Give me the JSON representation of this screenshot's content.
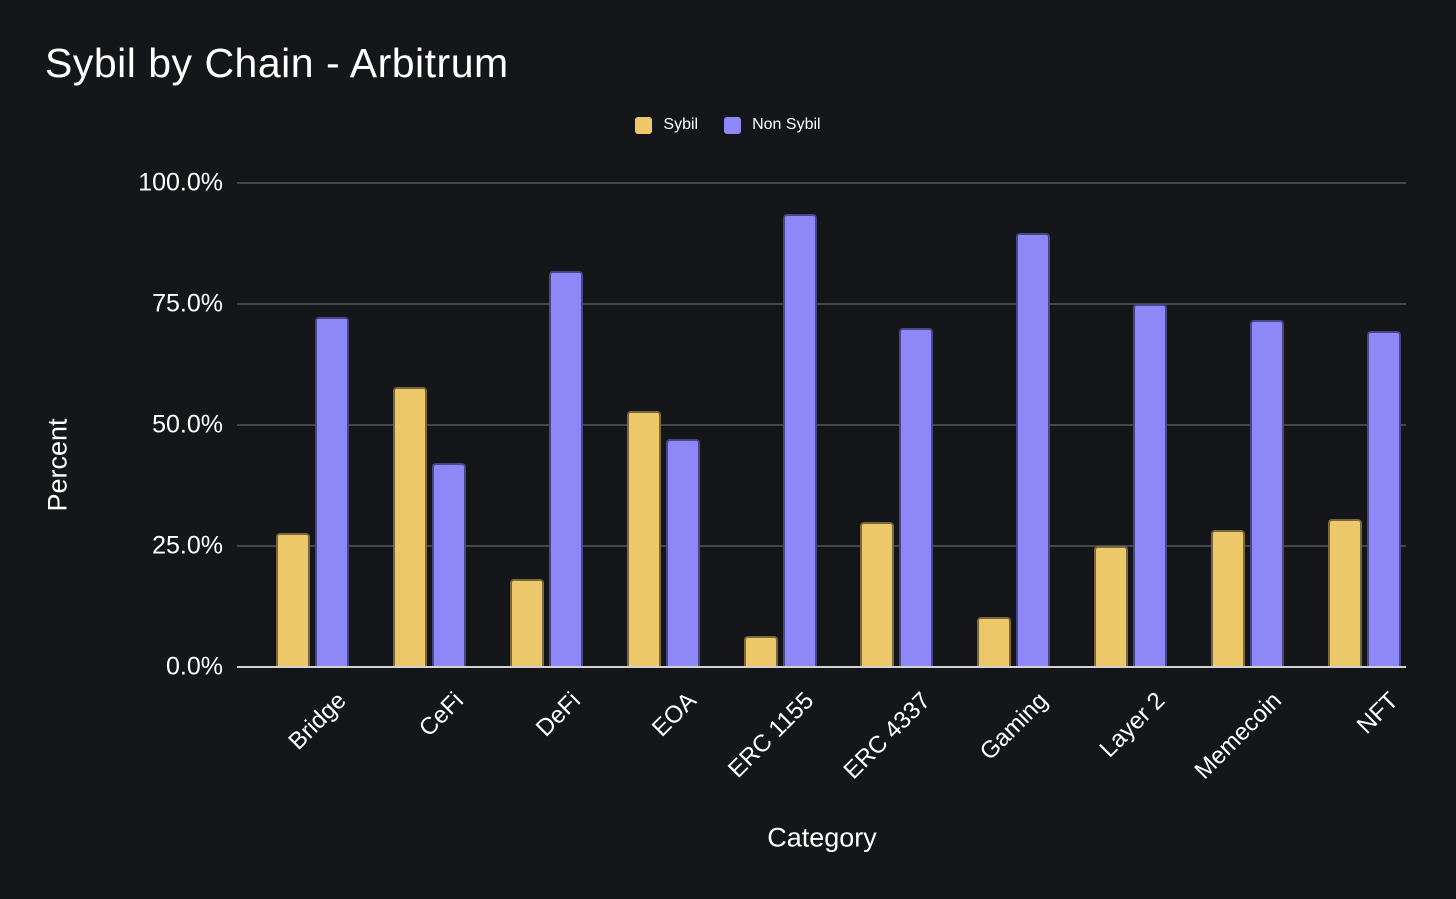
{
  "title": "Sybil by Chain - Arbitrum",
  "colors": {
    "background": "#15161a",
    "sybil": "#ecc869",
    "non_sybil": "#8d87f8",
    "gridline": "#46474c",
    "zero_axis": "#d2d2d2",
    "text": "#ffffff"
  },
  "legend": {
    "items": [
      {
        "label": "Sybil",
        "color": "#ecc869"
      },
      {
        "label": "Non Sybil",
        "color": "#8d87f8"
      }
    ]
  },
  "chart_data": {
    "type": "bar",
    "title": "Sybil by Chain - Arbitrum",
    "xlabel": "Category",
    "ylabel": "Percent",
    "ylim": [
      0,
      100
    ],
    "grid": true,
    "legend_position": "top-center",
    "categories": [
      "Bridge",
      "CeFi",
      "DeFi",
      "EOA",
      "ERC 1155",
      "ERC 4337",
      "Gaming",
      "Layer 2",
      "Memecoin",
      "NFT"
    ],
    "series": [
      {
        "name": "Sybil",
        "color": "#ecc869",
        "values": [
          27.6,
          57.9,
          18.2,
          52.8,
          6.5,
          29.9,
          10.3,
          25.1,
          28.4,
          30.6
        ]
      },
      {
        "name": "Non Sybil",
        "color": "#8d87f8",
        "values": [
          72.4,
          42.1,
          81.8,
          47.2,
          93.5,
          70.1,
          89.7,
          74.9,
          71.6,
          69.4
        ]
      }
    ],
    "yticks": [
      {
        "label": "0.0%",
        "value": 0
      },
      {
        "label": "25.0%",
        "value": 25
      },
      {
        "label": "50.0%",
        "value": 50
      },
      {
        "label": "75.0%",
        "value": 75
      },
      {
        "label": "100.0%",
        "value": 100
      }
    ]
  }
}
